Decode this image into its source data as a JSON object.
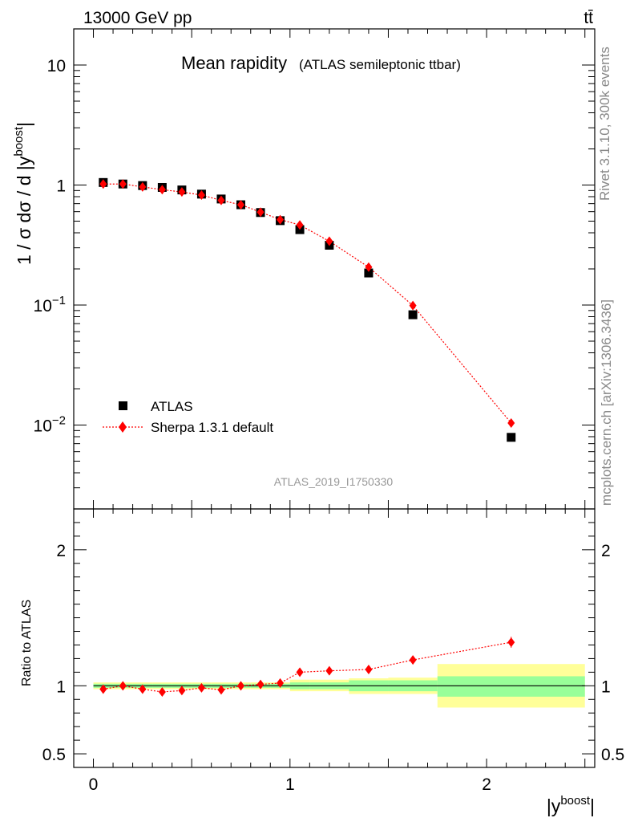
{
  "header": {
    "energy": "13000 GeV pp",
    "process": "tt̄",
    "title": "Mean rapidity",
    "subtitle": "(ATLAS semileptonic ttbar)",
    "analysis_id": "ATLAS_2019_I1750330"
  },
  "side_labels": {
    "rivet": "Rivet 3.1.10,  300k events",
    "mcplots": "mcplots.cern.ch [arXiv:1306.3436]"
  },
  "legend": {
    "atlas": "ATLAS",
    "sherpa": "Sherpa 1.3.1 default"
  },
  "colors": {
    "data": "#000000",
    "mc": "#ff0000",
    "band_stat": "#99ff99",
    "band_total": "#ffff99"
  },
  "chart_data": [
    {
      "type": "scatter",
      "panel": "main",
      "ylabel": "1 / σ dσ / d |y^boost|",
      "yscale": "log",
      "ylim": [
        0.002,
        20
      ],
      "xlim": [
        -0.1,
        2.55
      ],
      "y_tick_labels": [
        "10",
        "1",
        "10^-1",
        "10^-2"
      ],
      "y_tick_values": [
        10,
        1,
        0.1,
        0.01
      ],
      "x": [
        0.05,
        0.15,
        0.25,
        0.35,
        0.45,
        0.55,
        0.65,
        0.75,
        0.85,
        0.95,
        1.05,
        1.2,
        1.4,
        1.625,
        2.125
      ],
      "x_bin_edges": [
        0,
        0.1,
        0.2,
        0.3,
        0.4,
        0.5,
        0.6,
        0.7,
        0.8,
        0.9,
        1.0,
        1.1,
        1.3,
        1.5,
        1.75,
        2.5
      ],
      "series": [
        {
          "name": "ATLAS",
          "marker": "square",
          "values": [
            1.05,
            1.02,
            0.99,
            0.955,
            0.91,
            0.84,
            0.765,
            0.685,
            0.59,
            0.505,
            0.425,
            0.315,
            0.185,
            0.083,
            0.0079
          ]
        },
        {
          "name": "Sherpa 1.3.1 default",
          "marker": "diamond",
          "line": "dotted",
          "values": [
            1.02,
            1.02,
            0.965,
            0.915,
            0.875,
            0.825,
            0.745,
            0.685,
            0.595,
            0.515,
            0.465,
            0.34,
            0.207,
            0.099,
            0.0104
          ]
        }
      ]
    },
    {
      "type": "scatter",
      "panel": "ratio",
      "ylabel": "Ratio to ATLAS",
      "xlabel": "|y^boost|",
      "ylim": [
        0.4,
        2.3
      ],
      "y_tick_labels": [
        "0.5",
        "1",
        "2"
      ],
      "y_tick_values": [
        0.5,
        1,
        2
      ],
      "x_tick_labels": [
        "0",
        "1",
        "2"
      ],
      "x_tick_values": [
        0,
        1,
        2
      ],
      "x": [
        0.05,
        0.15,
        0.25,
        0.35,
        0.45,
        0.55,
        0.65,
        0.75,
        0.85,
        0.95,
        1.05,
        1.2,
        1.4,
        1.625,
        2.125
      ],
      "band_stat": [
        [
          0.985,
          1.015
        ],
        [
          0.985,
          1.015
        ],
        [
          0.985,
          1.015
        ],
        [
          0.985,
          1.015
        ],
        [
          0.985,
          1.015
        ],
        [
          0.985,
          1.015
        ],
        [
          0.985,
          1.015
        ],
        [
          0.985,
          1.015
        ],
        [
          0.985,
          1.015
        ],
        [
          0.985,
          1.015
        ],
        [
          0.975,
          1.025
        ],
        [
          0.975,
          1.025
        ],
        [
          0.96,
          1.04
        ],
        [
          0.96,
          1.04
        ],
        [
          0.92,
          1.07
        ]
      ],
      "band_total": [
        [
          0.975,
          1.025
        ],
        [
          0.975,
          1.025
        ],
        [
          0.975,
          1.025
        ],
        [
          0.975,
          1.025
        ],
        [
          0.975,
          1.025
        ],
        [
          0.975,
          1.025
        ],
        [
          0.975,
          1.025
        ],
        [
          0.975,
          1.025
        ],
        [
          0.975,
          1.025
        ],
        [
          0.975,
          1.025
        ],
        [
          0.96,
          1.045
        ],
        [
          0.96,
          1.045
        ],
        [
          0.94,
          1.055
        ],
        [
          0.94,
          1.06
        ],
        [
          0.84,
          1.16
        ]
      ],
      "series": [
        {
          "name": "Sherpa 1.3.1 default",
          "values": [
            0.975,
            1.0,
            0.975,
            0.955,
            0.965,
            0.985,
            0.97,
            1.0,
            1.01,
            1.02,
            1.1,
            1.11,
            1.12,
            1.19,
            1.32
          ],
          "errors": [
            0.005,
            0.005,
            0.005,
            0.005,
            0.005,
            0.005,
            0.005,
            0.005,
            0.005,
            0.006,
            0.008,
            0.008,
            0.01,
            0.015,
            0.04
          ]
        }
      ]
    }
  ]
}
